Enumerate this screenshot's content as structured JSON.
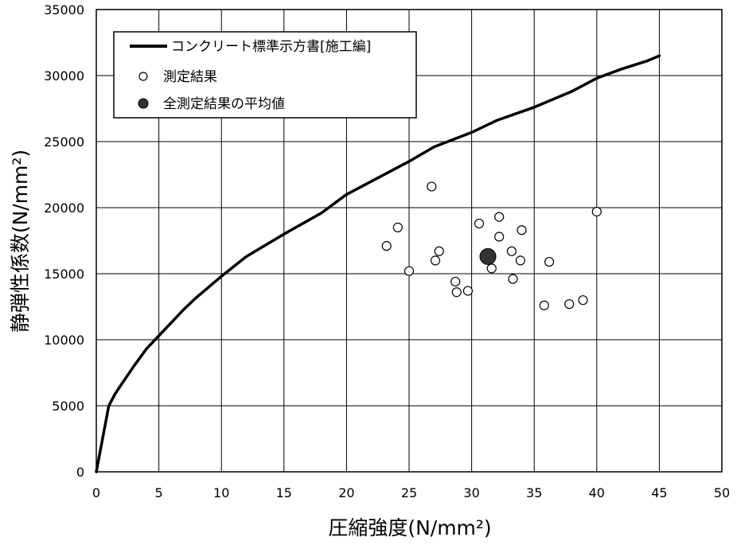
{
  "chart_data": {
    "type": "scatter",
    "title": "",
    "xlabel": "圧縮強度(N/mm²)",
    "ylabel": "静弾性係数(N/mm²)",
    "xlim": [
      0,
      50
    ],
    "ylim": [
      0,
      35000
    ],
    "xticks": [
      0,
      5,
      10,
      15,
      20,
      25,
      30,
      35,
      40,
      45,
      50
    ],
    "yticks": [
      0,
      5000,
      10000,
      15000,
      20000,
      25000,
      30000,
      35000
    ],
    "grid": true,
    "legend_position": "top-left",
    "series": [
      {
        "name": "コンクリート標準示方書[施工編]",
        "kind": "line",
        "color": "#000000",
        "points": [
          [
            0,
            0
          ],
          [
            0.3,
            1500
          ],
          [
            0.6,
            3000
          ],
          [
            1,
            5000
          ],
          [
            1.5,
            5900
          ],
          [
            2,
            6600
          ],
          [
            3,
            8000
          ],
          [
            4,
            9300
          ],
          [
            5,
            10300
          ],
          [
            6,
            11300
          ],
          [
            7,
            12300
          ],
          [
            8,
            13200
          ],
          [
            9,
            14000
          ],
          [
            10,
            14800
          ],
          [
            12,
            16300
          ],
          [
            15,
            18000
          ],
          [
            18,
            19600
          ],
          [
            20,
            21000
          ],
          [
            22,
            22000
          ],
          [
            25,
            23500
          ],
          [
            27,
            24600
          ],
          [
            30,
            25700
          ],
          [
            32,
            26600
          ],
          [
            35,
            27600
          ],
          [
            38,
            28800
          ],
          [
            40,
            29800
          ],
          [
            42,
            30500
          ],
          [
            44,
            31100
          ],
          [
            45,
            31500
          ]
        ]
      },
      {
        "name": "測定結果",
        "kind": "scatter",
        "marker": "open-circle",
        "points": [
          [
            23.2,
            17100
          ],
          [
            24.1,
            18500
          ],
          [
            25.0,
            15200
          ],
          [
            26.8,
            21600
          ],
          [
            27.1,
            16000
          ],
          [
            27.4,
            16700
          ],
          [
            28.7,
            14400
          ],
          [
            28.8,
            13600
          ],
          [
            29.7,
            13700
          ],
          [
            30.6,
            18800
          ],
          [
            31.6,
            15400
          ],
          [
            32.2,
            17800
          ],
          [
            32.2,
            19300
          ],
          [
            33.2,
            16700
          ],
          [
            33.3,
            14600
          ],
          [
            33.9,
            16000
          ],
          [
            34.0,
            18300
          ],
          [
            36.2,
            15900
          ],
          [
            35.8,
            12600
          ],
          [
            37.8,
            12700
          ],
          [
            38.9,
            13000
          ],
          [
            40.0,
            19700
          ]
        ]
      },
      {
        "name": "全測定結果の平均値",
        "kind": "scatter",
        "marker": "filled-circle",
        "color": "#333333",
        "points": [
          [
            31.3,
            16300
          ]
        ]
      }
    ]
  }
}
